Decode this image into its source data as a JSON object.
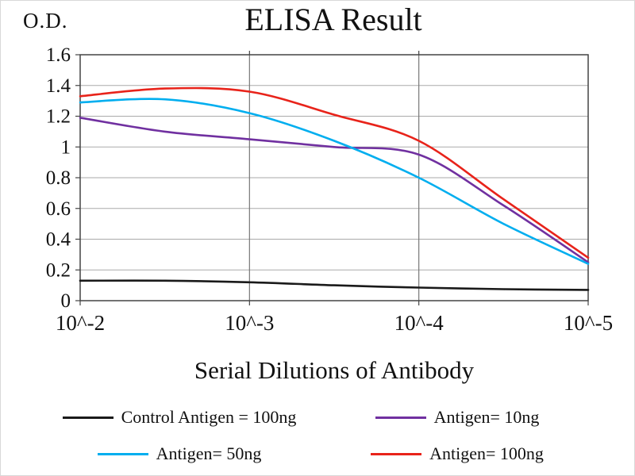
{
  "title": "ELISA Result",
  "y_axis_label": "O.D.",
  "x_axis_label": "Serial Dilutions of Antibody",
  "chart_data": {
    "type": "line",
    "title": "ELISA Result",
    "xlabel": "Serial Dilutions of Antibody",
    "ylabel": "O.D.",
    "grid": "on",
    "legend_position": "bottom",
    "ylim": [
      0,
      1.6
    ],
    "y_tick_values": [
      0,
      0.2,
      0.4,
      0.6,
      0.8,
      1,
      1.2,
      1.4,
      1.6
    ],
    "y_tick_labels": [
      "0",
      "0.2",
      "0.4",
      "0.6",
      "0.8",
      "1",
      "1.2",
      "1.4",
      "1.6"
    ],
    "x_tick_labels": [
      "10^-2",
      "10^-3",
      "10^-4",
      "10^-5"
    ],
    "x_decades": [
      0,
      0.5,
      1,
      1.5,
      2,
      2.5,
      3
    ],
    "series": [
      {
        "name": "Control Antigen = 100ng",
        "color": "#1a1a1a",
        "values": [
          0.13,
          0.13,
          0.12,
          0.1,
          0.085,
          0.075,
          0.07
        ]
      },
      {
        "name": "Antigen= 10ng",
        "color": "#7030a0",
        "values": [
          1.19,
          1.1,
          1.05,
          1.0,
          0.95,
          0.62,
          0.25
        ]
      },
      {
        "name": "Antigen= 50ng",
        "color": "#00aeef",
        "values": [
          1.29,
          1.31,
          1.22,
          1.04,
          0.8,
          0.5,
          0.24
        ]
      },
      {
        "name": "Antigen= 100ng",
        "color": "#e8231a",
        "values": [
          1.33,
          1.38,
          1.36,
          1.21,
          1.04,
          0.66,
          0.28
        ]
      }
    ],
    "gridline_color": "#aaaaaa",
    "major_vline_color": "#777777",
    "border_color": "#444444"
  }
}
